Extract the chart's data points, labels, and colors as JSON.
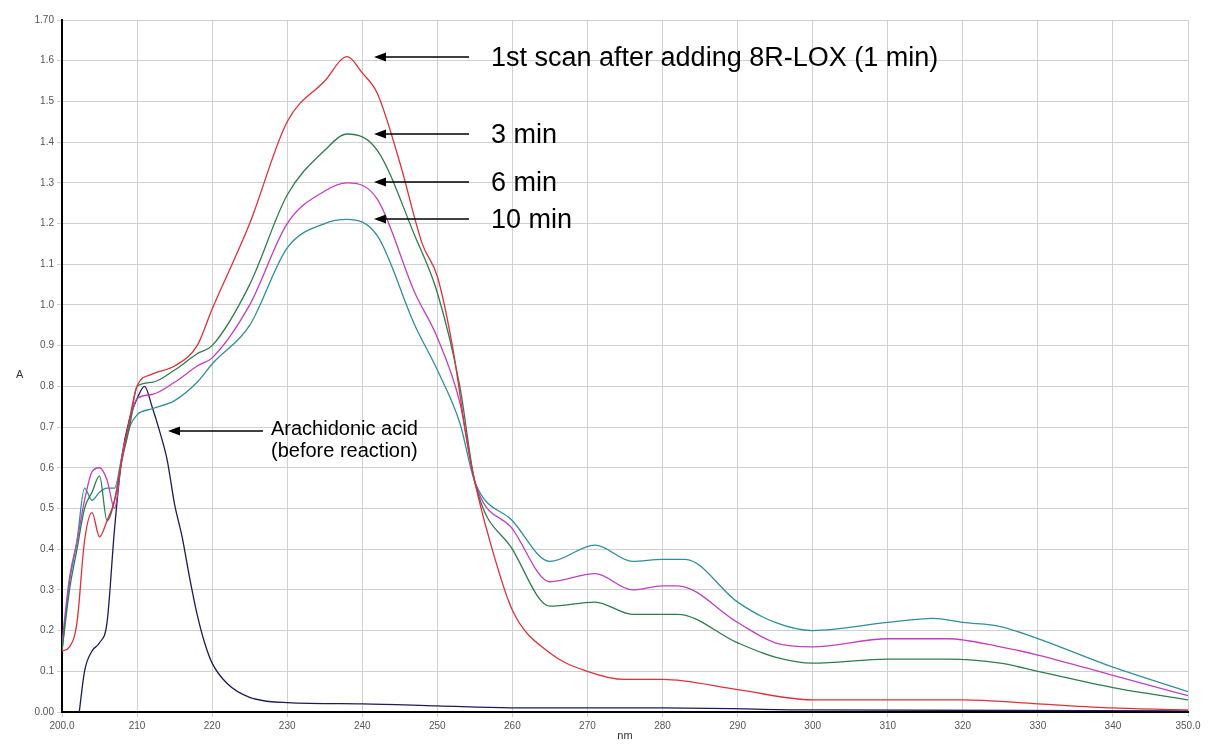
{
  "chart_data": {
    "type": "line",
    "xlabel": "nm",
    "ylabel": "A",
    "grid": true,
    "legend": false,
    "marker": "none",
    "line_style": "solid",
    "xlim": [
      200,
      350
    ],
    "xticks": [
      {
        "value": 200,
        "label": "200.0"
      },
      210,
      220,
      230,
      240,
      250,
      260,
      270,
      280,
      290,
      300,
      310,
      320,
      330,
      340,
      {
        "value": 350,
        "label": "350.0"
      }
    ],
    "ylim": [
      0,
      1.7
    ],
    "yticks": [
      {
        "value": 0,
        "label": "0.00"
      },
      0.1,
      0.2,
      0.3,
      0.4,
      0.5,
      0.6,
      0.7,
      0.8,
      0.9,
      {
        "value": 1,
        "label": "1.0"
      },
      1.1,
      1.2,
      1.3,
      1.4,
      1.5,
      1.6,
      {
        "value": 1.7,
        "label": "1.70"
      }
    ],
    "series": [
      {
        "color": "#e0303c",
        "x": [
          200,
          201,
          202,
          203,
          204,
          205,
          206,
          207,
          208,
          209,
          210,
          212,
          215,
          218,
          220,
          225,
          230,
          235,
          238,
          240,
          242,
          245,
          248,
          250,
          252,
          254,
          255,
          257,
          260,
          265,
          270,
          275,
          280,
          290,
          300,
          310,
          320,
          330,
          340,
          350
        ],
        "values": [
          0.15,
          0.16,
          0.22,
          0.42,
          0.49,
          0.43,
          0.47,
          0.52,
          0.62,
          0.72,
          0.8,
          0.83,
          0.85,
          0.9,
          0.99,
          1.2,
          1.45,
          1.55,
          1.61,
          1.57,
          1.52,
          1.35,
          1.15,
          1.07,
          0.9,
          0.66,
          0.565,
          0.42,
          0.25,
          0.145,
          0.1,
          0.08,
          0.08,
          0.055,
          0.03,
          0.03,
          0.03,
          0.02,
          0.01,
          0.005
        ]
      },
      {
        "color": "#2e7d4f",
        "x": [
          200,
          201,
          202,
          203,
          204,
          205,
          206,
          207,
          208,
          209,
          210,
          212,
          215,
          218,
          220,
          225,
          230,
          235,
          238,
          242,
          247,
          250,
          253,
          255,
          260,
          265,
          271,
          276,
          280,
          282,
          290,
          295,
          300,
          310,
          318,
          325,
          330,
          340,
          350
        ],
        "values": [
          0.15,
          0.3,
          0.4,
          0.5,
          0.54,
          0.58,
          0.47,
          0.52,
          0.62,
          0.7,
          0.8,
          0.81,
          0.84,
          0.88,
          0.9,
          1.05,
          1.27,
          1.38,
          1.42,
          1.38,
          1.17,
          1.03,
          0.8,
          0.565,
          0.4,
          0.26,
          0.27,
          0.24,
          0.24,
          0.24,
          0.17,
          0.135,
          0.12,
          0.13,
          0.13,
          0.12,
          0.1,
          0.06,
          0.03
        ]
      },
      {
        "color": "#c040c0",
        "x": [
          200,
          201,
          202,
          203,
          204,
          205,
          206,
          207,
          208,
          209,
          210,
          212,
          215,
          218,
          220,
          225,
          230,
          235,
          238,
          242,
          247,
          250,
          253,
          255,
          260,
          265,
          271,
          276,
          280,
          282,
          290,
          295,
          300,
          310,
          318,
          325,
          330,
          340,
          350
        ],
        "values": [
          0.17,
          0.33,
          0.42,
          0.52,
          0.59,
          0.6,
          0.57,
          0.5,
          0.63,
          0.71,
          0.77,
          0.78,
          0.81,
          0.85,
          0.87,
          1.0,
          1.2,
          1.28,
          1.3,
          1.26,
          1.03,
          0.92,
          0.76,
          0.565,
          0.45,
          0.32,
          0.34,
          0.3,
          0.31,
          0.31,
          0.22,
          0.17,
          0.16,
          0.18,
          0.18,
          0.16,
          0.14,
          0.09,
          0.04
        ]
      },
      {
        "color": "#2f8f9a",
        "x": [
          200,
          201,
          202,
          203,
          204,
          205,
          206,
          207,
          208,
          209,
          210,
          212,
          215,
          218,
          220,
          225,
          230,
          235,
          238,
          242,
          247,
          250,
          253,
          255,
          260,
          265,
          271,
          276,
          280,
          283,
          290,
          295,
          300,
          310,
          316,
          320,
          325,
          330,
          340,
          350
        ],
        "values": [
          0.15,
          0.32,
          0.42,
          0.55,
          0.52,
          0.54,
          0.55,
          0.55,
          0.63,
          0.7,
          0.73,
          0.745,
          0.765,
          0.81,
          0.855,
          0.95,
          1.14,
          1.2,
          1.21,
          1.17,
          0.95,
          0.84,
          0.71,
          0.565,
          0.47,
          0.37,
          0.41,
          0.37,
          0.375,
          0.375,
          0.27,
          0.22,
          0.2,
          0.22,
          0.23,
          0.22,
          0.21,
          0.18,
          0.11,
          0.05
        ]
      },
      {
        "color": "#1c1c5c",
        "x": [
          202.3,
          203,
          204,
          205,
          206,
          207,
          208,
          209,
          210,
          211,
          212,
          213,
          214,
          215,
          216,
          217,
          218,
          219,
          220,
          222,
          225,
          230,
          240,
          250,
          260,
          280,
          300,
          350
        ],
        "values": [
          0,
          0.1,
          0.15,
          0.17,
          0.22,
          0.45,
          0.63,
          0.72,
          0.77,
          0.8,
          0.75,
          0.69,
          0.62,
          0.51,
          0.43,
          0.33,
          0.24,
          0.17,
          0.12,
          0.07,
          0.036,
          0.023,
          0.02,
          0.015,
          0.01,
          0.01,
          0.005,
          0.003
        ]
      }
    ],
    "annotations": [
      "1st scan after adding 8R-LOX (1 min)",
      "3 min",
      "6 min",
      "10 min",
      "Arachidonic acid\n(before reaction)"
    ]
  }
}
